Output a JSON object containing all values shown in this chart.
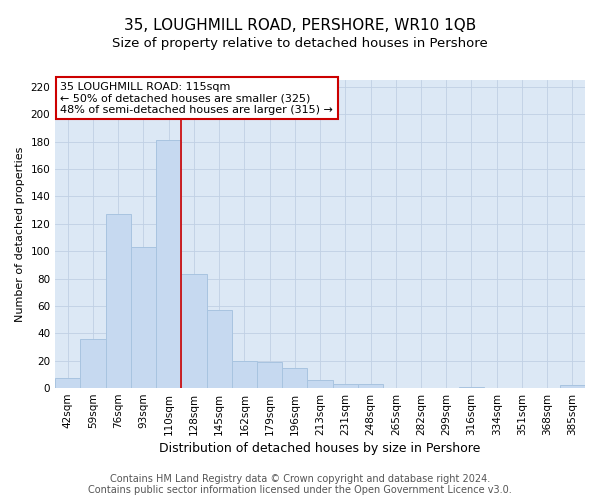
{
  "title": "35, LOUGHMILL ROAD, PERSHORE, WR10 1QB",
  "subtitle": "Size of property relative to detached houses in Pershore",
  "xlabel": "Distribution of detached houses by size in Pershore",
  "ylabel": "Number of detached properties",
  "categories": [
    "42sqm",
    "59sqm",
    "76sqm",
    "93sqm",
    "110sqm",
    "128sqm",
    "145sqm",
    "162sqm",
    "179sqm",
    "196sqm",
    "213sqm",
    "231sqm",
    "248sqm",
    "265sqm",
    "282sqm",
    "299sqm",
    "316sqm",
    "334sqm",
    "351sqm",
    "368sqm",
    "385sqm"
  ],
  "values": [
    7,
    36,
    127,
    103,
    181,
    83,
    57,
    20,
    19,
    15,
    6,
    3,
    3,
    0,
    0,
    0,
    1,
    0,
    0,
    0,
    2
  ],
  "bar_color": "#c6d9f0",
  "bar_edge_color": "#a8c4e0",
  "highlight_line_index": 4,
  "highlight_color": "#cc0000",
  "annotation_text": "35 LOUGHMILL ROAD: 115sqm\n← 50% of detached houses are smaller (325)\n48% of semi-detached houses are larger (315) →",
  "annotation_box_color": "#ffffff",
  "annotation_box_edge_color": "#cc0000",
  "ylim": [
    0,
    225
  ],
  "yticks": [
    0,
    20,
    40,
    60,
    80,
    100,
    120,
    140,
    160,
    180,
    200,
    220
  ],
  "footer_line1": "Contains HM Land Registry data © Crown copyright and database right 2024.",
  "footer_line2": "Contains public sector information licensed under the Open Government Licence v3.0.",
  "plot_bg_color": "#dce8f5",
  "grid_color": "#c0d0e4",
  "title_fontsize": 11,
  "subtitle_fontsize": 9.5,
  "xlabel_fontsize": 9,
  "ylabel_fontsize": 8,
  "tick_fontsize": 7.5,
  "footer_fontsize": 7,
  "ann_fontsize": 8
}
